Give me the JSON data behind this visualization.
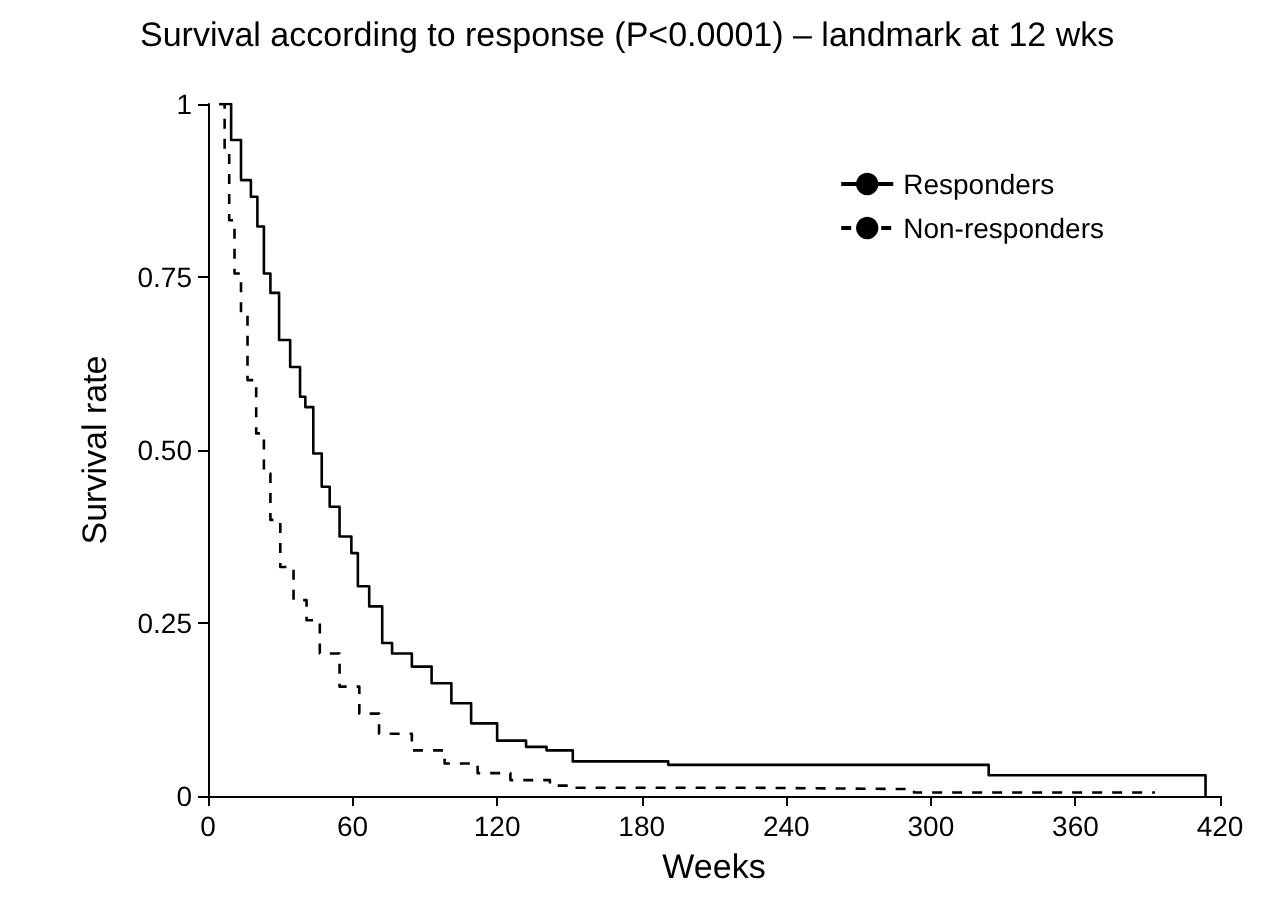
{
  "chart_data": {
    "type": "step",
    "title": "Survival according to response (P<0.0001) – landmark at 12 wks",
    "xlabel": "Weeks",
    "ylabel": "Survival rate",
    "xlim": [
      0,
      420
    ],
    "xticks": [
      0,
      60,
      120,
      180,
      240,
      300,
      360,
      420
    ],
    "ylim": [
      0,
      1
    ],
    "yticks": [
      0,
      {
        "value": 0.25,
        "label": "0.25"
      },
      {
        "value": 0.5,
        "label": "0.50"
      },
      {
        "value": 0.75,
        "label": "0.75"
      },
      1
    ],
    "grid": false,
    "legend": "top right",
    "marker": "none",
    "series": [
      {
        "name": "Responders",
        "color": "#000000",
        "line_style": "solid",
        "x": [
          4.7,
          9.6,
          13.7,
          17.8,
          20.5,
          23.2,
          25.9,
          29.5,
          34.1,
          38.2,
          40.4,
          43.7,
          47.2,
          50.5,
          54.6,
          59.5,
          62.2,
          66.9,
          72.3,
          76.4,
          84.6,
          92.8,
          101,
          109.2,
          120,
          132,
          140.5,
          151.4,
          191,
          324,
          414
        ],
        "values": [
          1,
          0.948,
          0.89,
          0.866,
          0.823,
          0.755,
          0.727,
          0.659,
          0.62,
          0.577,
          0.562,
          0.495,
          0.447,
          0.418,
          0.375,
          0.351,
          0.303,
          0.274,
          0.221,
          0.206,
          0.187,
          0.163,
          0.134,
          0.105,
          0.08,
          0.071,
          0.066,
          0.05,
          0.045,
          0.03,
          0
        ]
      },
      {
        "name": "Non-responders",
        "color": "#000000",
        "line_style": "dashed",
        "x": [
          4.7,
          6.9,
          8.8,
          11,
          13.7,
          16.4,
          20,
          23.2,
          25.9,
          30,
          35.5,
          40.9,
          46.4,
          54.6,
          62.8,
          71,
          84.6,
          98.2,
          111.9,
          125.5,
          141.9,
          153,
          224,
          293,
          393
        ],
        "values": [
          1,
          0.929,
          0.832,
          0.755,
          0.697,
          0.601,
          0.524,
          0.466,
          0.399,
          0.331,
          0.283,
          0.254,
          0.206,
          0.158,
          0.119,
          0.09,
          0.066,
          0.047,
          0.033,
          0.023,
          0.015,
          0.012,
          0.01,
          0.005,
          0.005
        ]
      }
    ]
  }
}
